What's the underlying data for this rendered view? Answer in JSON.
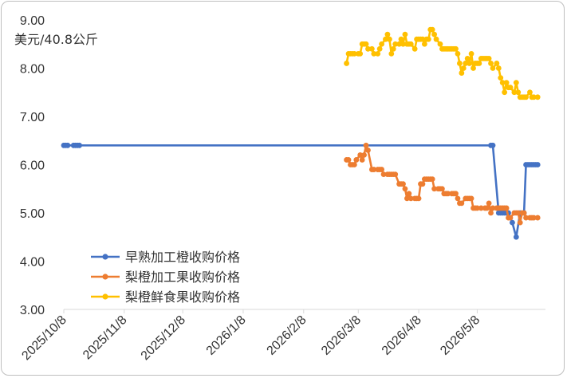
{
  "chart_data": {
    "type": "line",
    "unit_label": "美元/40.8公斤",
    "y_ticks": [
      "3.00",
      "4.00",
      "5.00",
      "6.00",
      "7.00",
      "8.00",
      "9.00"
    ],
    "ylim": [
      3,
      9
    ],
    "x_ticks": [
      "2025/10/8",
      "2025/11/8",
      "2025/12/8",
      "2026/1/8",
      "2026/2/8",
      "2026/3/8",
      "2026/4/8",
      "2026/5/8"
    ],
    "xlim": [
      "2025/10/8",
      "2026/6/12"
    ],
    "grid": false,
    "legend_position": "bottom-left",
    "colors": {
      "series_1": "#4472c4",
      "series_2": "#ed7d31",
      "series_3": "#ffc000",
      "axis": "#d9d9d9"
    },
    "series": [
      {
        "name": "早熟加工橙收购价格",
        "points": [
          [
            "2025/10/8",
            6.4
          ],
          [
            "2025/10/9",
            6.4
          ],
          [
            "2025/10/10",
            6.4
          ],
          [
            "2025/10/13",
            6.4
          ],
          [
            "2025/10/14",
            6.4
          ],
          [
            "2025/10/15",
            6.4
          ],
          [
            "2025/10/16",
            6.4
          ],
          [
            "2026/5/15",
            6.4
          ],
          [
            "2026/5/16",
            6.4
          ],
          [
            "2026/5/19",
            5.0
          ],
          [
            "2026/5/20",
            5.0
          ],
          [
            "2026/5/21",
            5.0
          ],
          [
            "2026/5/22",
            5.0
          ],
          [
            "2026/5/23",
            5.0
          ],
          [
            "2026/5/24",
            5.0
          ],
          [
            "2026/5/26",
            4.8
          ],
          [
            "2026/5/28",
            4.5
          ],
          [
            "2026/5/30",
            5.0
          ],
          [
            "2026/6/1",
            5.0
          ],
          [
            "2026/6/2",
            6.0
          ],
          [
            "2026/6/3",
            6.0
          ],
          [
            "2026/6/4",
            6.0
          ],
          [
            "2026/6/5",
            6.0
          ],
          [
            "2026/6/6",
            6.0
          ],
          [
            "2026/6/7",
            6.0
          ],
          [
            "2026/6/8",
            6.0
          ]
        ]
      },
      {
        "name": "梨橙加工果收购价格",
        "points": [
          [
            "2026/3/2",
            6.1
          ],
          [
            "2026/3/3",
            6.1
          ],
          [
            "2026/3/4",
            6.0
          ],
          [
            "2026/3/5",
            6.0
          ],
          [
            "2026/3/6",
            6.0
          ],
          [
            "2026/3/7",
            6.1
          ],
          [
            "2026/3/9",
            6.2
          ],
          [
            "2026/3/10",
            6.1
          ],
          [
            "2026/3/11",
            6.2
          ],
          [
            "2026/3/12",
            6.4
          ],
          [
            "2026/3/13",
            6.3
          ],
          [
            "2026/3/15",
            5.9
          ],
          [
            "2026/3/16",
            5.9
          ],
          [
            "2026/3/18",
            5.9
          ],
          [
            "2026/3/19",
            5.9
          ],
          [
            "2026/3/20",
            5.9
          ],
          [
            "2026/3/21",
            5.8
          ],
          [
            "2026/3/23",
            5.8
          ],
          [
            "2026/3/24",
            5.8
          ],
          [
            "2026/3/25",
            5.8
          ],
          [
            "2026/3/26",
            5.8
          ],
          [
            "2026/3/27",
            5.8
          ],
          [
            "2026/3/29",
            5.6
          ],
          [
            "2026/3/30",
            5.6
          ],
          [
            "2026/3/31",
            5.6
          ],
          [
            "2026/4/1",
            5.5
          ],
          [
            "2026/4/2",
            5.3
          ],
          [
            "2026/4/3",
            5.4
          ],
          [
            "2026/4/4",
            5.3
          ],
          [
            "2026/4/6",
            5.3
          ],
          [
            "2026/4/7",
            5.3
          ],
          [
            "2026/4/8",
            5.3
          ],
          [
            "2026/4/9",
            5.6
          ],
          [
            "2026/4/10",
            5.6
          ],
          [
            "2026/4/11",
            5.7
          ],
          [
            "2026/4/12",
            5.7
          ],
          [
            "2026/4/13",
            5.7
          ],
          [
            "2026/4/14",
            5.7
          ],
          [
            "2026/4/15",
            5.7
          ],
          [
            "2026/4/16",
            5.5
          ],
          [
            "2026/4/18",
            5.5
          ],
          [
            "2026/4/19",
            5.5
          ],
          [
            "2026/4/20",
            5.5
          ],
          [
            "2026/4/21",
            5.4
          ],
          [
            "2026/4/22",
            5.4
          ],
          [
            "2026/4/23",
            5.4
          ],
          [
            "2026/4/25",
            5.4
          ],
          [
            "2026/4/26",
            5.4
          ],
          [
            "2026/4/27",
            5.4
          ],
          [
            "2026/4/28",
            5.3
          ],
          [
            "2026/4/29",
            5.2
          ],
          [
            "2026/4/30",
            5.2
          ],
          [
            "2026/5/2",
            5.3
          ],
          [
            "2026/5/3",
            5.3
          ],
          [
            "2026/5/4",
            5.3
          ],
          [
            "2026/5/5",
            5.3
          ],
          [
            "2026/5/6",
            5.1
          ],
          [
            "2026/5/7",
            5.1
          ],
          [
            "2026/5/8",
            5.1
          ],
          [
            "2026/5/10",
            5.1
          ],
          [
            "2026/5/12",
            5.1
          ],
          [
            "2026/5/13",
            5.1
          ],
          [
            "2026/5/14",
            5.2
          ],
          [
            "2026/5/15",
            5.0
          ],
          [
            "2026/5/16",
            5.1
          ],
          [
            "2026/5/18",
            5.1
          ],
          [
            "2026/5/19",
            5.1
          ],
          [
            "2026/5/20",
            5.1
          ],
          [
            "2026/5/21",
            5.1
          ],
          [
            "2026/5/22",
            5.1
          ],
          [
            "2026/5/23",
            5.1
          ],
          [
            "2026/5/24",
            4.9
          ],
          [
            "2026/5/25",
            4.9
          ],
          [
            "2026/5/27",
            5.0
          ],
          [
            "2026/5/28",
            5.0
          ],
          [
            "2026/5/29",
            5.0
          ],
          [
            "2026/5/30",
            4.8
          ],
          [
            "2026/5/31",
            5.0
          ],
          [
            "2026/6/1",
            5.0
          ],
          [
            "2026/6/2",
            4.9
          ],
          [
            "2026/6/4",
            4.9
          ],
          [
            "2026/6/5",
            4.9
          ],
          [
            "2026/6/6",
            4.9
          ],
          [
            "2026/6/8",
            4.9
          ]
        ]
      },
      {
        "name": "梨橙鲜食果收购价格",
        "points": [
          [
            "2026/3/2",
            8.1
          ],
          [
            "2026/3/3",
            8.3
          ],
          [
            "2026/3/4",
            8.3
          ],
          [
            "2026/3/5",
            8.3
          ],
          [
            "2026/3/6",
            8.3
          ],
          [
            "2026/3/8",
            8.3
          ],
          [
            "2026/3/9",
            8.3
          ],
          [
            "2026/3/10",
            8.5
          ],
          [
            "2026/3/11",
            8.5
          ],
          [
            "2026/3/12",
            8.5
          ],
          [
            "2026/3/13",
            8.4
          ],
          [
            "2026/3/15",
            8.4
          ],
          [
            "2026/3/16",
            8.3
          ],
          [
            "2026/3/18",
            8.3
          ],
          [
            "2026/3/19",
            8.4
          ],
          [
            "2026/3/20",
            8.5
          ],
          [
            "2026/3/22",
            8.6
          ],
          [
            "2026/3/23",
            8.7
          ],
          [
            "2026/3/24",
            8.6
          ],
          [
            "2026/3/25",
            8.3
          ],
          [
            "2026/3/26",
            8.4
          ],
          [
            "2026/3/27",
            8.5
          ],
          [
            "2026/3/29",
            8.5
          ],
          [
            "2026/3/30",
            8.6
          ],
          [
            "2026/3/31",
            8.5
          ],
          [
            "2026/4/1",
            8.7
          ],
          [
            "2026/4/2",
            8.5
          ],
          [
            "2026/4/3",
            8.5
          ],
          [
            "2026/4/4",
            8.5
          ],
          [
            "2026/4/6",
            8.4
          ],
          [
            "2026/4/7",
            8.6
          ],
          [
            "2026/4/8",
            8.6
          ],
          [
            "2026/4/9",
            8.6
          ],
          [
            "2026/4/10",
            8.6
          ],
          [
            "2026/4/11",
            8.5
          ],
          [
            "2026/4/12",
            8.6
          ],
          [
            "2026/4/13",
            8.6
          ],
          [
            "2026/4/14",
            8.8
          ],
          [
            "2026/4/15",
            8.8
          ],
          [
            "2026/4/16",
            8.7
          ],
          [
            "2026/4/17",
            8.6
          ],
          [
            "2026/4/19",
            8.5
          ],
          [
            "2026/4/20",
            8.4
          ],
          [
            "2026/4/21",
            8.4
          ],
          [
            "2026/4/22",
            8.4
          ],
          [
            "2026/4/23",
            8.4
          ],
          [
            "2026/4/24",
            8.4
          ],
          [
            "2026/4/25",
            8.4
          ],
          [
            "2026/4/26",
            8.4
          ],
          [
            "2026/4/27",
            8.4
          ],
          [
            "2026/4/28",
            8.3
          ],
          [
            "2026/4/29",
            8.1
          ],
          [
            "2026/4/30",
            7.9
          ],
          [
            "2026/5/1",
            8.0
          ],
          [
            "2026/5/2",
            8.1
          ],
          [
            "2026/5/3",
            8.2
          ],
          [
            "2026/5/4",
            8.1
          ],
          [
            "2026/5/5",
            8.3
          ],
          [
            "2026/5/6",
            8.0
          ],
          [
            "2026/5/7",
            8.1
          ],
          [
            "2026/5/8",
            8.1
          ],
          [
            "2026/5/9",
            8.1
          ],
          [
            "2026/5/10",
            8.2
          ],
          [
            "2026/5/11",
            8.2
          ],
          [
            "2026/5/12",
            8.2
          ],
          [
            "2026/5/13",
            8.2
          ],
          [
            "2026/5/14",
            8.2
          ],
          [
            "2026/5/15",
            8.1
          ],
          [
            "2026/5/16",
            8.0
          ],
          [
            "2026/5/18",
            8.1
          ],
          [
            "2026/5/19",
            8.0
          ],
          [
            "2026/5/20",
            7.8
          ],
          [
            "2026/5/21",
            7.7
          ],
          [
            "2026/5/22",
            7.5
          ],
          [
            "2026/5/23",
            7.7
          ],
          [
            "2026/5/24",
            7.6
          ],
          [
            "2026/5/25",
            7.6
          ],
          [
            "2026/5/27",
            7.5
          ],
          [
            "2026/5/28",
            7.7
          ],
          [
            "2026/5/29",
            7.5
          ],
          [
            "2026/5/30",
            7.4
          ],
          [
            "2026/5/31",
            7.4
          ],
          [
            "2026/6/1",
            7.4
          ],
          [
            "2026/6/2",
            7.4
          ],
          [
            "2026/6/4",
            7.5
          ],
          [
            "2026/6/5",
            7.4
          ],
          [
            "2026/6/6",
            7.4
          ],
          [
            "2026/6/8",
            7.4
          ]
        ]
      }
    ]
  }
}
